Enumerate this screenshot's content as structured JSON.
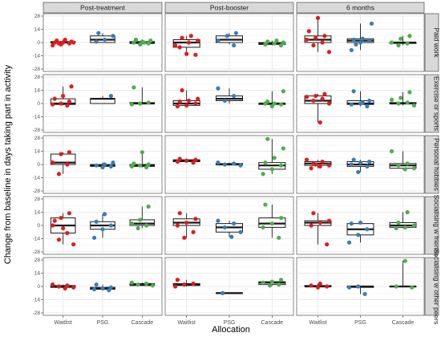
{
  "chart_data": {
    "type": "boxplot-with-points",
    "ylabel": "Change from baseline in days taking part in activity",
    "xlabel": "Allocation",
    "columns": [
      "Post-treatment",
      "Post-booster",
      "6 months"
    ],
    "rows": [
      "Paid work",
      "Exercise or sports",
      "Personal hobbies",
      "Socialising w friends",
      "Socialising w other peers"
    ],
    "groups": [
      "Waitlist",
      "PSG",
      "Cascade"
    ],
    "group_colors": {
      "Waitlist": "#e41a1c",
      "PSG": "#377eb8",
      "Cascade": "#4daf4a"
    },
    "y_ticks": [
      -28,
      -14,
      0,
      14,
      28
    ],
    "ylim": [
      -28,
      28
    ],
    "grid": true,
    "panels": [
      {
        "row": 0,
        "col": 0,
        "groups": [
          {
            "name": "Waitlist",
            "box": [
              -2,
              0,
              0,
              1,
              3
            ],
            "points": [
              -3,
              -2,
              -1,
              0,
              0,
              1,
              2,
              3,
              0,
              -1
            ]
          },
          {
            "name": "PSG",
            "box": [
              0,
              0,
              3,
              7,
              10
            ],
            "points": [
              1,
              3,
              7,
              10
            ]
          },
          {
            "name": "Cascade",
            "box": [
              -2,
              -1,
              0,
              1,
              3
            ],
            "points": [
              -2,
              -1,
              0,
              1,
              2,
              3,
              0
            ]
          }
        ]
      },
      {
        "row": 0,
        "col": 1,
        "groups": [
          {
            "name": "Waitlist",
            "box": [
              -13,
              -5,
              0,
              3,
              7
            ],
            "points": [
              -12,
              -13,
              -5,
              0,
              2,
              5,
              7,
              -3
            ]
          },
          {
            "name": "PSG",
            "box": [
              -2,
              0,
              3,
              7,
              10
            ],
            "points": [
              -3,
              2,
              7,
              10
            ]
          },
          {
            "name": "Cascade",
            "box": [
              -3,
              -2,
              -1,
              0,
              2
            ],
            "points": [
              -3,
              -2,
              -1,
              0,
              1,
              2
            ]
          }
        ]
      },
      {
        "row": 0,
        "col": 2,
        "groups": [
          {
            "name": "Waitlist",
            "box": [
              -10,
              0,
              3,
              7,
              26
            ],
            "points": [
              -10,
              -3,
              0,
              3,
              5,
              7,
              12,
              26
            ]
          },
          {
            "name": "PSG",
            "box": [
              -8,
              0,
              2,
              4,
              20
            ],
            "points": [
              -8,
              0,
              2,
              3,
              4,
              20,
              -2
            ]
          },
          {
            "name": "Cascade",
            "box": [
              -3,
              -1,
              0,
              0,
              7
            ],
            "points": [
              -3,
              -1,
              0,
              4,
              7
            ]
          }
        ]
      },
      {
        "row": 1,
        "col": 0,
        "groups": [
          {
            "name": "Waitlist",
            "box": [
              -2,
              -1,
              0,
              5,
              18
            ],
            "points": [
              -2,
              -1,
              0,
              2,
              5,
              8,
              18
            ]
          },
          {
            "name": "PSG",
            "box": [
              0,
              0,
              5,
              5,
              8
            ],
            "points": [
              8
            ]
          },
          {
            "name": "Cascade",
            "box": [
              -1,
              0,
              0,
              1,
              17
            ],
            "points": [
              -1,
              0,
              1,
              17
            ]
          }
        ]
      },
      {
        "row": 1,
        "col": 1,
        "groups": [
          {
            "name": "Waitlist",
            "box": [
              -3,
              -2,
              0,
              3,
              14
            ],
            "points": [
              -3,
              -2,
              0,
              2,
              3,
              5,
              14
            ]
          },
          {
            "name": "PSG",
            "box": [
              0,
              3,
              5,
              8,
              16
            ],
            "points": [
              3,
              8,
              16
            ]
          },
          {
            "name": "Cascade",
            "box": [
              -3,
              -1,
              0,
              0,
              13
            ],
            "points": [
              -3,
              -1,
              0,
              0,
              13,
              2
            ]
          }
        ]
      },
      {
        "row": 1,
        "col": 2,
        "groups": [
          {
            "name": "Waitlist",
            "box": [
              -20,
              0,
              3,
              8,
              10
            ],
            "points": [
              -20,
              0,
              3,
              5,
              7,
              8,
              10
            ]
          },
          {
            "name": "PSG",
            "box": [
              -3,
              -1,
              0,
              3,
              13
            ],
            "points": [
              -3,
              -1,
              0,
              3,
              13,
              1
            ]
          },
          {
            "name": "Cascade",
            "box": [
              -2,
              0,
              0,
              1,
              12
            ],
            "points": [
              -2,
              0,
              1,
              4,
              6,
              12
            ]
          }
        ]
      },
      {
        "row": 2,
        "col": 0,
        "groups": [
          {
            "name": "Waitlist",
            "box": [
              -10,
              0,
              2,
              11,
              13
            ],
            "points": [
              -10,
              0,
              2,
              11,
              13
            ]
          },
          {
            "name": "PSG",
            "box": [
              -3,
              -2,
              -1,
              0,
              2
            ],
            "points": [
              -3,
              -2,
              -1,
              0,
              2
            ]
          },
          {
            "name": "Cascade",
            "box": [
              -3,
              -2,
              -1,
              0,
              13
            ],
            "points": [
              -3,
              -2,
              -1,
              0,
              1,
              13
            ]
          }
        ]
      },
      {
        "row": 2,
        "col": 1,
        "groups": [
          {
            "name": "Waitlist",
            "box": [
              2,
              3,
              4,
              5,
              6
            ],
            "points": [
              2,
              3,
              4,
              5,
              6
            ]
          },
          {
            "name": "PSG",
            "box": [
              -1,
              0,
              0,
              1,
              2
            ],
            "points": [
              -1,
              0,
              1,
              2
            ]
          },
          {
            "name": "Cascade",
            "box": [
              -10,
              -5,
              -1,
              2,
              27
            ],
            "points": [
              -10,
              -5,
              -1,
              2,
              7,
              17,
              27
            ]
          }
        ]
      },
      {
        "row": 2,
        "col": 2,
        "groups": [
          {
            "name": "Waitlist",
            "box": [
              -4,
              -1,
              1,
              3,
              5
            ],
            "points": [
              -4,
              -2,
              -1,
              1,
              3,
              5,
              0
            ]
          },
          {
            "name": "PSG",
            "box": [
              -8,
              -2,
              0,
              3,
              5
            ],
            "points": [
              -8,
              -2,
              0,
              2,
              3,
              5
            ]
          },
          {
            "name": "Cascade",
            "box": [
              -5,
              -4,
              -1,
              1,
              14
            ],
            "points": [
              -5,
              -4,
              -1,
              1,
              14
            ]
          }
        ]
      },
      {
        "row": 3,
        "col": 0,
        "groups": [
          {
            "name": "Waitlist",
            "box": [
              -20,
              -8,
              0,
              8,
              13
            ],
            "points": [
              -20,
              -15,
              -8,
              0,
              8,
              13,
              5,
              -3
            ]
          },
          {
            "name": "PSG",
            "box": [
              -13,
              -4,
              0,
              4,
              12
            ],
            "points": [
              -13,
              -4,
              0,
              4,
              12
            ]
          },
          {
            "name": "Cascade",
            "box": [
              -3,
              0,
              2,
              6,
              20
            ],
            "points": [
              -3,
              0,
              2,
              6,
              20
            ]
          }
        ]
      },
      {
        "row": 3,
        "col": 1,
        "groups": [
          {
            "name": "Waitlist",
            "box": [
              -13,
              0,
              3,
              7,
              13
            ],
            "points": [
              -13,
              -7,
              0,
              3,
              7,
              13
            ]
          },
          {
            "name": "PSG",
            "box": [
              -12,
              -7,
              -2,
              2,
              5
            ],
            "points": [
              -12,
              -7,
              -2,
              2,
              5
            ]
          },
          {
            "name": "Cascade",
            "box": [
              -13,
              -2,
              2,
              8,
              22
            ],
            "points": [
              -13,
              -2,
              2,
              8,
              22
            ]
          }
        ]
      },
      {
        "row": 3,
        "col": 2,
        "groups": [
          {
            "name": "Waitlist",
            "box": [
              -20,
              0,
              3,
              5,
              13
            ],
            "points": [
              -20,
              0,
              3,
              5,
              13
            ]
          },
          {
            "name": "PSG",
            "box": [
              -18,
              -10,
              -4,
              2,
              3
            ],
            "points": [
              -18,
              -10,
              -4,
              2,
              3
            ]
          },
          {
            "name": "Cascade",
            "box": [
              -3,
              -2,
              0,
              3,
              14
            ],
            "points": [
              -3,
              -2,
              0,
              3,
              14
            ]
          }
        ]
      },
      {
        "row": 4,
        "col": 0,
        "groups": [
          {
            "name": "Waitlist",
            "box": [
              -2,
              -1,
              0,
              1,
              2
            ],
            "points": [
              -2,
              -1,
              0,
              1,
              2
            ]
          },
          {
            "name": "PSG",
            "box": [
              -4,
              -3,
              -2,
              -1,
              2
            ],
            "points": [
              -4,
              -3,
              -2,
              -1,
              2
            ]
          },
          {
            "name": "Cascade",
            "box": [
              1,
              1,
              2,
              3,
              4
            ],
            "points": [
              1,
              2,
              3,
              4
            ]
          }
        ]
      },
      {
        "row": 4,
        "col": 1,
        "groups": [
          {
            "name": "Waitlist",
            "box": [
              0,
              1,
              2,
              3,
              7
            ],
            "points": [
              0,
              2,
              3,
              7
            ]
          },
          {
            "name": "PSG",
            "box": [
              -7,
              -7,
              -7,
              -7,
              -7
            ],
            "points": [
              -7
            ]
          },
          {
            "name": "Cascade",
            "box": [
              1,
              2,
              4,
              5,
              7
            ],
            "points": [
              1,
              2,
              4,
              5,
              7
            ]
          }
        ]
      },
      {
        "row": 4,
        "col": 2,
        "groups": [
          {
            "name": "Waitlist",
            "box": [
              -1,
              0,
              0,
              1,
              3
            ],
            "points": [
              -1,
              0,
              1,
              3
            ]
          },
          {
            "name": "PSG",
            "box": [
              -8,
              -1,
              0,
              0,
              0
            ],
            "points": [
              -8,
              -1,
              0
            ]
          },
          {
            "name": "Cascade",
            "box": [
              -1,
              0,
              0,
              0,
              27
            ],
            "points": [
              -1,
              0,
              27
            ]
          }
        ]
      }
    ]
  }
}
